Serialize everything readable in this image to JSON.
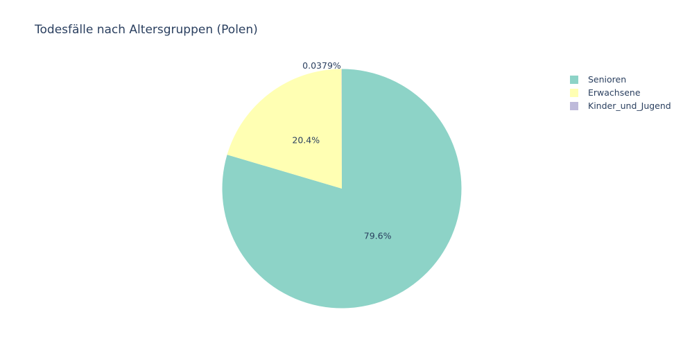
{
  "chart_data": {
    "type": "pie",
    "title": "Todesfälle nach Altersgruppen (Polen)",
    "slices": [
      {
        "label": "Senioren",
        "value": 79.6,
        "text": "79.6%",
        "color": "#8dd3c7"
      },
      {
        "label": "Erwachsene",
        "value": 20.4,
        "text": "20.4%",
        "color": "#ffffb3"
      },
      {
        "label": "Kinder_und_Jugend",
        "value": 0.0379,
        "text": "0.0379%",
        "color": "#bebada"
      }
    ],
    "direction": "clockwise",
    "start": "top",
    "legend_position": "top-right",
    "text_color": "#2a3f5f"
  }
}
